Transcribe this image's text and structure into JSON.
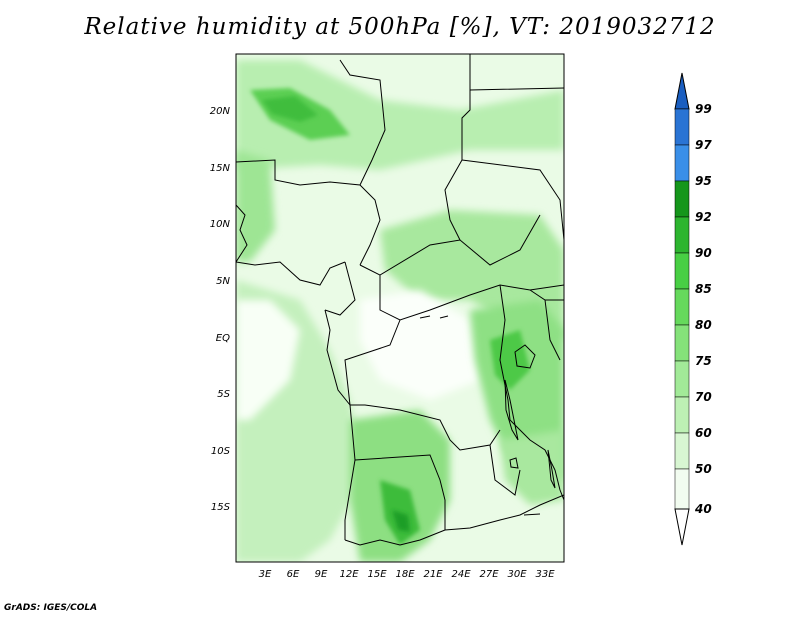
{
  "title": "Relative humidity at 500hPa [%], VT: 2019032712",
  "credit": "GrADS: IGES/COLA",
  "map": {
    "lon_range": [
      0,
      35
    ],
    "lat_range": [
      -20,
      25
    ],
    "lat_ticks": [
      "20N",
      "15N",
      "10N",
      "5N",
      "EQ",
      "5S",
      "10S",
      "15S"
    ],
    "lon_ticks": [
      "3E",
      "6E",
      "9E",
      "12E",
      "15E",
      "18E",
      "21E",
      "24E",
      "27E",
      "30E",
      "33E"
    ]
  },
  "colorbar": {
    "labels": [
      "40",
      "50",
      "60",
      "70",
      "75",
      "80",
      "85",
      "90",
      "92",
      "95",
      "97",
      "99"
    ],
    "colors": [
      "#f2fcf0",
      "#d8f6d2",
      "#bdf0b4",
      "#a2ea98",
      "#85e27a",
      "#66d95c",
      "#48cf44",
      "#2db52f",
      "#15961b",
      "#3a8fe8",
      "#2a74d4",
      "#1a5ec0"
    ]
  },
  "colors": {
    "ocean_humid": "#c8f2c2",
    "dry": "#ffffff",
    "moist": "#7fdc72",
    "wet": "#2fae30"
  }
}
